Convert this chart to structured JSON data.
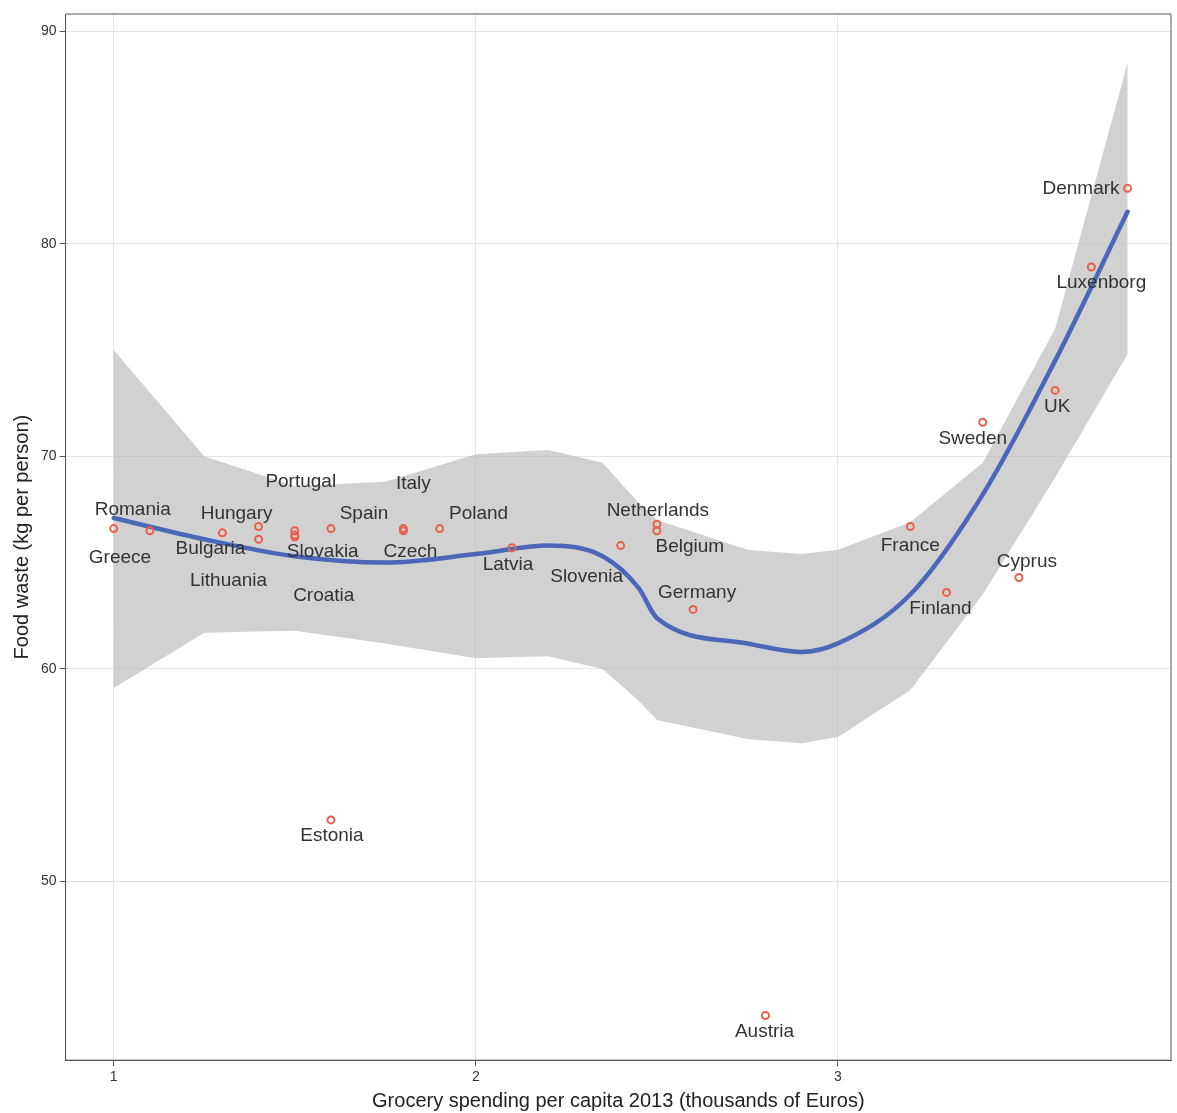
{
  "chart_data": {
    "type": "scatter",
    "xlabel": "Grocery spending per capita 2013 (thousands of Euros)",
    "ylabel": "Food waste (kg per person)",
    "xlim": [
      0.867,
      3.92
    ],
    "ylim": [
      41.6,
      90.8
    ],
    "xticks": [
      1,
      2,
      3
    ],
    "yticks": [
      50,
      60,
      70,
      80,
      90
    ],
    "grid": true,
    "legend": false,
    "series": [
      {
        "marker": "circle",
        "color": "#e8604c",
        "x": [
          1.0,
          1.1,
          1.3,
          1.4,
          1.4,
          1.5,
          1.5,
          1.5,
          1.6,
          1.8,
          1.8,
          1.9,
          2.1,
          2.4,
          2.5,
          2.5,
          2.6,
          1.6,
          2.8,
          3.2,
          3.3,
          3.5,
          3.4,
          3.6,
          3.7,
          3.8
        ],
        "values": [
          66.6,
          66.5,
          66.4,
          66.7,
          66.1,
          66.5,
          66.3,
          66.2,
          66.6,
          66.6,
          66.5,
          66.6,
          65.7,
          65.8,
          66.8,
          66.5,
          62.8,
          52.9,
          43.7,
          66.7,
          63.6,
          64.3,
          71.6,
          73.1,
          78.9,
          82.6
        ]
      },
      {
        "type": "line",
        "marker": "none",
        "color": "#4a67b8",
        "x": [
          1.0,
          1.25,
          1.5,
          1.75,
          2.0,
          2.2,
          2.35,
          2.45,
          2.5,
          2.75,
          2.9,
          3.0,
          3.2,
          3.4,
          3.6,
          3.8
        ],
        "values": [
          67.1,
          66.1,
          65.3,
          65.0,
          65.4,
          65.8,
          65.3,
          63.8,
          62.4,
          61.2,
          60.8,
          61.2,
          63.5,
          68.2,
          74.5,
          81.5
        ],
        "lower": [
          59.1,
          61.7,
          61.8,
          61.2,
          60.5,
          60.6,
          60.0,
          58.5,
          57.6,
          56.7,
          56.5,
          56.8,
          59.0,
          63.5,
          69.0,
          74.8
        ],
        "upper": [
          75.0,
          70.0,
          68.6,
          68.8,
          70.1,
          70.3,
          69.7,
          67.8,
          67.0,
          65.6,
          65.4,
          65.6,
          66.9,
          69.7,
          76.0,
          88.5
        ]
      }
    ],
    "annotations": [
      {
        "text": "Romania",
        "x": 1.0,
        "y": 66.6
      },
      {
        "text": "Greece",
        "x": 1.1,
        "y": 66.5
      },
      {
        "text": "Bulgaria",
        "x": 1.3,
        "y": 66.4
      },
      {
        "text": "Hungary",
        "x": 1.4,
        "y": 66.7
      },
      {
        "text": "Lithuania",
        "x": 1.4,
        "y": 66.1
      },
      {
        "text": "Portugal",
        "x": 1.5,
        "y": 66.5
      },
      {
        "text": "Slovakia",
        "x": 1.5,
        "y": 66.3
      },
      {
        "text": "Croatia",
        "x": 1.5,
        "y": 66.2
      },
      {
        "text": "Spain",
        "x": 1.6,
        "y": 66.6
      },
      {
        "text": "Italy",
        "x": 1.8,
        "y": 66.6
      },
      {
        "text": "Czech",
        "x": 1.8,
        "y": 66.5
      },
      {
        "text": "Poland",
        "x": 1.9,
        "y": 66.6
      },
      {
        "text": "Latvia",
        "x": 2.1,
        "y": 65.7
      },
      {
        "text": "Slovenia",
        "x": 2.4,
        "y": 65.8
      },
      {
        "text": "Netherlands",
        "x": 2.5,
        "y": 66.8
      },
      {
        "text": "Belgium",
        "x": 2.5,
        "y": 66.5
      },
      {
        "text": "Germany",
        "x": 2.6,
        "y": 62.8
      },
      {
        "text": "Estonia",
        "x": 1.6,
        "y": 52.9
      },
      {
        "text": "Austria",
        "x": 2.8,
        "y": 43.7
      },
      {
        "text": "France",
        "x": 3.2,
        "y": 66.7
      },
      {
        "text": "Finland",
        "x": 3.3,
        "y": 63.6
      },
      {
        "text": "Cyprus",
        "x": 3.5,
        "y": 64.3
      },
      {
        "text": "Sweden",
        "x": 3.4,
        "y": 71.6
      },
      {
        "text": "UK",
        "x": 3.6,
        "y": 73.1
      },
      {
        "text": "Luxenborg",
        "x": 3.7,
        "y": 78.9
      },
      {
        "text": "Denmark",
        "x": 3.8,
        "y": 82.6
      }
    ]
  }
}
